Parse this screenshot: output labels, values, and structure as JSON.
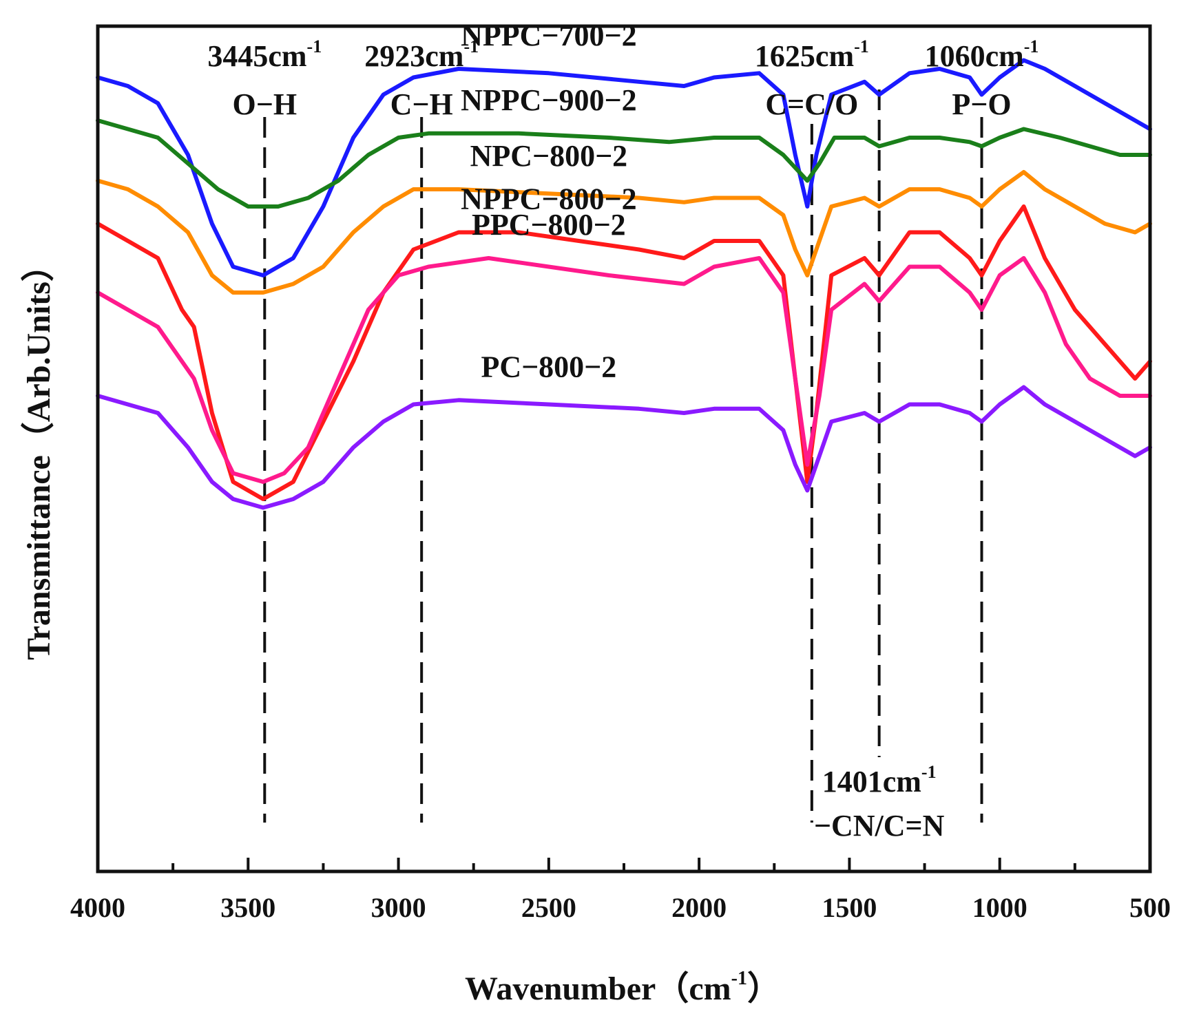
{
  "chart_data": {
    "type": "line",
    "xlabel": "Wavenumber（cm",
    "xlabel_sup": "-1",
    "xlabel_close": "）",
    "ylabel": "Transmittance（Arb.Units）",
    "xlim": [
      4000,
      500
    ],
    "x_reversed": true,
    "x_ticks": [
      "4000",
      "3500",
      "3000",
      "2500",
      "2000",
      "1500",
      "1000",
      "500"
    ],
    "y_ticks_shown": false,
    "grid": false,
    "reference_lines": [
      {
        "x": 3445,
        "label_top": "3445cm",
        "label_sup": "-1",
        "label_bottom": "O−H"
      },
      {
        "x": 2923,
        "label_top": "2923cm",
        "label_sup": "-1",
        "label_bottom": "C−H"
      },
      {
        "x": 1625,
        "label_top": "1625cm",
        "label_sup": "-1",
        "label_bottom": "C=C/O"
      },
      {
        "x": 1401,
        "label_top": "1401cm",
        "label_sup": "-1",
        "label_bottom": "−CN/C=N"
      },
      {
        "x": 1060,
        "label_top": "1060cm",
        "label_sup": "-1",
        "label_bottom": "P−O"
      }
    ],
    "series": [
      {
        "name": "NPPC−700−2",
        "color": "#1a1aff",
        "points": [
          [
            4000,
            95
          ],
          [
            3900,
            94
          ],
          [
            3800,
            92
          ],
          [
            3700,
            86
          ],
          [
            3620,
            78
          ],
          [
            3550,
            73
          ],
          [
            3450,
            72
          ],
          [
            3350,
            74
          ],
          [
            3250,
            80
          ],
          [
            3150,
            88
          ],
          [
            3050,
            93
          ],
          [
            2950,
            95
          ],
          [
            2800,
            96
          ],
          [
            2500,
            95.5
          ],
          [
            2200,
            94.5
          ],
          [
            2050,
            94
          ],
          [
            1950,
            95
          ],
          [
            1800,
            95.5
          ],
          [
            1720,
            93
          ],
          [
            1680,
            86
          ],
          [
            1640,
            80
          ],
          [
            1610,
            86
          ],
          [
            1560,
            93
          ],
          [
            1450,
            94.5
          ],
          [
            1401,
            93
          ],
          [
            1300,
            95.5
          ],
          [
            1200,
            96
          ],
          [
            1100,
            95
          ],
          [
            1060,
            93
          ],
          [
            1000,
            95
          ],
          [
            920,
            97
          ],
          [
            850,
            96
          ],
          [
            750,
            94
          ],
          [
            650,
            92
          ],
          [
            550,
            90
          ],
          [
            500,
            89
          ]
        ]
      },
      {
        "name": "NPPC−800−2",
        "color": "#ff1a1a",
        "points": [
          [
            4000,
            78
          ],
          [
            3900,
            76
          ],
          [
            3800,
            74
          ],
          [
            3720,
            68
          ],
          [
            3680,
            66
          ],
          [
            3620,
            56
          ],
          [
            3550,
            48
          ],
          [
            3450,
            46
          ],
          [
            3350,
            48
          ],
          [
            3250,
            55
          ],
          [
            3150,
            62
          ],
          [
            3050,
            70
          ],
          [
            2950,
            75
          ],
          [
            2800,
            77
          ],
          [
            2600,
            77
          ],
          [
            2400,
            76
          ],
          [
            2200,
            75
          ],
          [
            2050,
            74
          ],
          [
            1950,
            76
          ],
          [
            1800,
            76
          ],
          [
            1720,
            72
          ],
          [
            1680,
            60
          ],
          [
            1640,
            48
          ],
          [
            1610,
            56
          ],
          [
            1560,
            72
          ],
          [
            1450,
            74
          ],
          [
            1401,
            72
          ],
          [
            1300,
            77
          ],
          [
            1200,
            77
          ],
          [
            1100,
            74
          ],
          [
            1060,
            72
          ],
          [
            1000,
            76
          ],
          [
            920,
            80
          ],
          [
            850,
            74
          ],
          [
            750,
            68
          ],
          [
            650,
            64
          ],
          [
            550,
            60
          ],
          [
            500,
            62
          ]
        ]
      },
      {
        "name": "NPPC−900−2",
        "color": "#1a7f1a",
        "points": [
          [
            4000,
            90
          ],
          [
            3900,
            89
          ],
          [
            3800,
            88
          ],
          [
            3700,
            85
          ],
          [
            3600,
            82
          ],
          [
            3500,
            80
          ],
          [
            3400,
            80
          ],
          [
            3300,
            81
          ],
          [
            3200,
            83
          ],
          [
            3100,
            86
          ],
          [
            3000,
            88
          ],
          [
            2900,
            88.5
          ],
          [
            2600,
            88.5
          ],
          [
            2300,
            88
          ],
          [
            2100,
            87.5
          ],
          [
            1950,
            88
          ],
          [
            1800,
            88
          ],
          [
            1720,
            86
          ],
          [
            1640,
            83
          ],
          [
            1600,
            85
          ],
          [
            1550,
            88
          ],
          [
            1450,
            88
          ],
          [
            1401,
            87
          ],
          [
            1300,
            88
          ],
          [
            1200,
            88
          ],
          [
            1100,
            87.5
          ],
          [
            1060,
            87
          ],
          [
            1000,
            88
          ],
          [
            920,
            89
          ],
          [
            800,
            88
          ],
          [
            700,
            87
          ],
          [
            600,
            86
          ],
          [
            500,
            86
          ]
        ]
      },
      {
        "name": "NPC−800−2",
        "color": "#ff8c00",
        "points": [
          [
            4000,
            83
          ],
          [
            3900,
            82
          ],
          [
            3800,
            80
          ],
          [
            3700,
            77
          ],
          [
            3620,
            72
          ],
          [
            3550,
            70
          ],
          [
            3450,
            70
          ],
          [
            3350,
            71
          ],
          [
            3250,
            73
          ],
          [
            3150,
            77
          ],
          [
            3050,
            80
          ],
          [
            2950,
            82
          ],
          [
            2800,
            82
          ],
          [
            2500,
            81.5
          ],
          [
            2200,
            81
          ],
          [
            2050,
            80.5
          ],
          [
            1950,
            81
          ],
          [
            1800,
            81
          ],
          [
            1720,
            79
          ],
          [
            1680,
            75
          ],
          [
            1640,
            72
          ],
          [
            1610,
            75
          ],
          [
            1560,
            80
          ],
          [
            1450,
            81
          ],
          [
            1401,
            80
          ],
          [
            1300,
            82
          ],
          [
            1200,
            82
          ],
          [
            1100,
            81
          ],
          [
            1060,
            80
          ],
          [
            1000,
            82
          ],
          [
            920,
            84
          ],
          [
            850,
            82
          ],
          [
            750,
            80
          ],
          [
            650,
            78
          ],
          [
            550,
            77
          ],
          [
            500,
            78
          ]
        ]
      },
      {
        "name": "PPC−800−2",
        "color": "#ff1a8c",
        "points": [
          [
            4000,
            70
          ],
          [
            3900,
            68
          ],
          [
            3800,
            66
          ],
          [
            3720,
            62
          ],
          [
            3680,
            60
          ],
          [
            3620,
            54
          ],
          [
            3550,
            49
          ],
          [
            3450,
            48
          ],
          [
            3380,
            49
          ],
          [
            3300,
            52
          ],
          [
            3200,
            60
          ],
          [
            3100,
            68
          ],
          [
            3000,
            72
          ],
          [
            2900,
            73
          ],
          [
            2700,
            74
          ],
          [
            2500,
            73
          ],
          [
            2300,
            72
          ],
          [
            2050,
            71
          ],
          [
            1950,
            73
          ],
          [
            1800,
            74
          ],
          [
            1720,
            70
          ],
          [
            1680,
            60
          ],
          [
            1640,
            50
          ],
          [
            1600,
            58
          ],
          [
            1560,
            68
          ],
          [
            1450,
            71
          ],
          [
            1401,
            69
          ],
          [
            1300,
            73
          ],
          [
            1200,
            73
          ],
          [
            1100,
            70
          ],
          [
            1060,
            68
          ],
          [
            1000,
            72
          ],
          [
            920,
            74
          ],
          [
            850,
            70
          ],
          [
            780,
            64
          ],
          [
            700,
            60
          ],
          [
            600,
            58
          ],
          [
            500,
            58
          ]
        ]
      },
      {
        "name": "PC−800−2",
        "color": "#8a1aff",
        "points": [
          [
            4000,
            58
          ],
          [
            3900,
            57
          ],
          [
            3800,
            56
          ],
          [
            3700,
            52
          ],
          [
            3620,
            48
          ],
          [
            3550,
            46
          ],
          [
            3450,
            45
          ],
          [
            3350,
            46
          ],
          [
            3250,
            48
          ],
          [
            3150,
            52
          ],
          [
            3050,
            55
          ],
          [
            2950,
            57
          ],
          [
            2800,
            57.5
          ],
          [
            2500,
            57
          ],
          [
            2200,
            56.5
          ],
          [
            2050,
            56
          ],
          [
            1950,
            56.5
          ],
          [
            1800,
            56.5
          ],
          [
            1720,
            54
          ],
          [
            1680,
            50
          ],
          [
            1640,
            47
          ],
          [
            1610,
            50
          ],
          [
            1560,
            55
          ],
          [
            1450,
            56
          ],
          [
            1401,
            55
          ],
          [
            1300,
            57
          ],
          [
            1200,
            57
          ],
          [
            1100,
            56
          ],
          [
            1060,
            55
          ],
          [
            1000,
            57
          ],
          [
            920,
            59
          ],
          [
            850,
            57
          ],
          [
            750,
            55
          ],
          [
            650,
            53
          ],
          [
            550,
            51
          ],
          [
            500,
            52
          ]
        ]
      }
    ]
  }
}
